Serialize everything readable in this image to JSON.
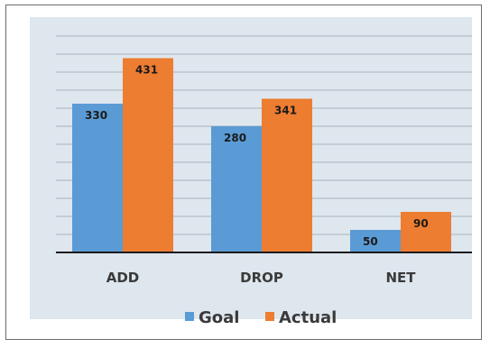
{
  "chart_data": {
    "type": "bar",
    "categories": [
      "ADD",
      "DROP",
      "NET"
    ],
    "series": [
      {
        "name": "Goal",
        "values": [
          330,
          280,
          50
        ],
        "color": "#5b9bd5"
      },
      {
        "name": "Actual",
        "values": [
          431,
          341,
          90
        ],
        "color": "#ed7d31"
      }
    ],
    "title": "",
    "xlabel": "",
    "ylabel": "",
    "ylim": [
      0,
      480
    ],
    "grid": true,
    "legend_position": "bottom"
  }
}
